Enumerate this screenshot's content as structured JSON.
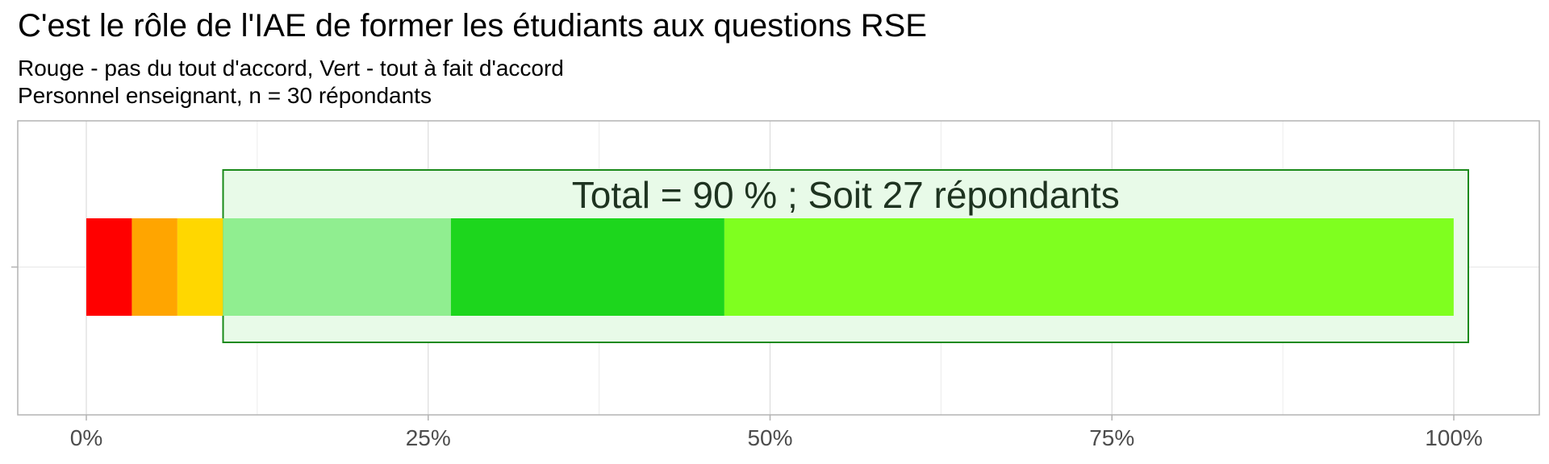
{
  "chart_data": {
    "type": "bar",
    "orientation": "horizontal-stacked",
    "title": "C'est le rôle de l'IAE de former les étudiants aux questions RSE",
    "subtitles": [
      "Rouge - pas du tout d'accord, Vert - tout à fait d'accord",
      "Personnel enseignant, n = 30 répondants"
    ],
    "xlim": [
      0,
      1
    ],
    "x_ticks": [
      0,
      0.25,
      0.5,
      0.75,
      1.0
    ],
    "x_tick_labels": [
      "0%",
      "25%",
      "50%",
      "75%",
      "100%"
    ],
    "grid": true,
    "series": [
      {
        "value": 0.0333,
        "color": "#ff0000"
      },
      {
        "value": 0.0333,
        "color": "#ffa500"
      },
      {
        "value": 0.0333,
        "color": "#ffd700"
      },
      {
        "value": 0.1667,
        "color": "#90ee90"
      },
      {
        "value": 0.2,
        "color": "#1dd61d"
      },
      {
        "value": 0.5333,
        "color": "#7fff1f"
      }
    ],
    "highlight": {
      "from": 0.1,
      "to": 1.0,
      "label": "Total = 90 % ; Soit 27 répondants",
      "fill": "#e8fae8",
      "stroke": "#1a8a1a"
    }
  }
}
